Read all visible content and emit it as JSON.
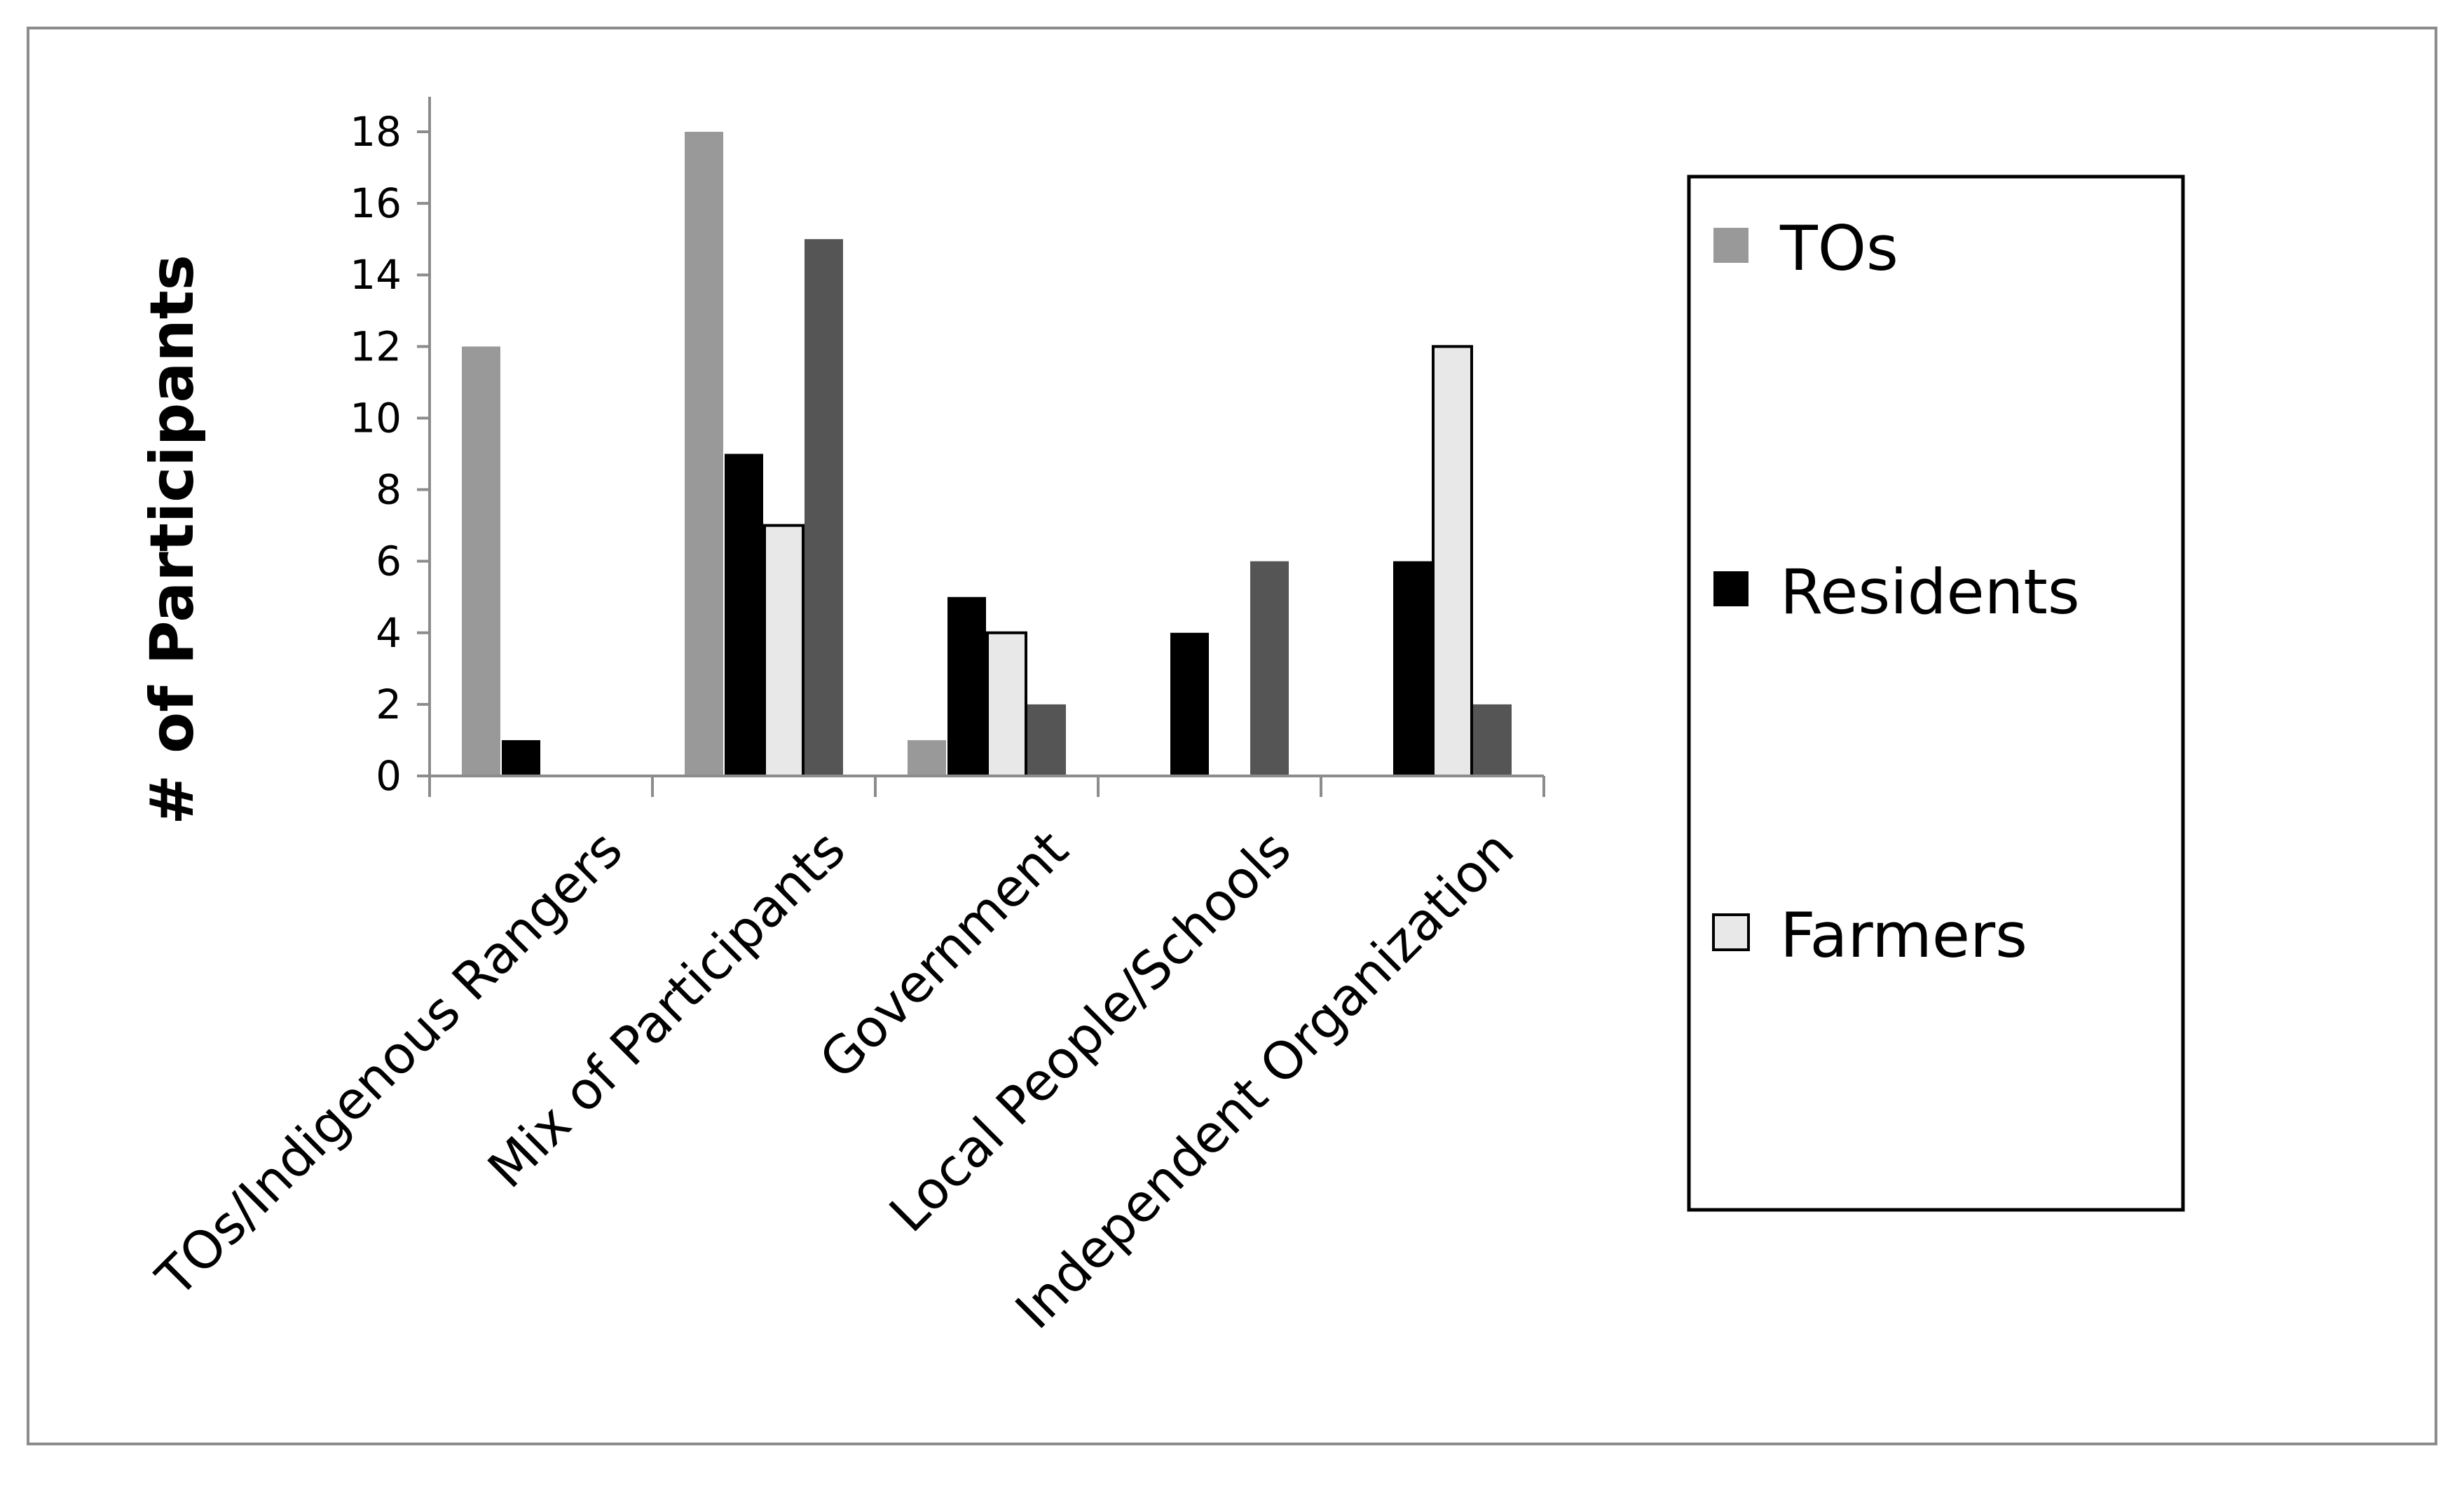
{
  "chart_data": {
    "type": "bar",
    "title": "",
    "xlabel": "",
    "ylabel": "# of Participants",
    "ylim": [
      0,
      18
    ],
    "yticks": [
      0,
      2,
      4,
      6,
      8,
      10,
      12,
      14,
      16,
      18
    ],
    "grid": false,
    "legend_position": "right",
    "categories": [
      "TOs/Indigenous Rangers",
      "Mix of Participants",
      "Government",
      "Local People/Schools",
      "Independent Organization"
    ],
    "series": [
      {
        "name": "TOs",
        "color": "#999999",
        "values": [
          12,
          18,
          1,
          0,
          0
        ]
      },
      {
        "name": "Residents",
        "color": "#000000",
        "values": [
          1,
          9,
          5,
          4,
          6
        ]
      },
      {
        "name": "Farmers",
        "color": "#e8e8e8",
        "values": [
          0,
          7,
          4,
          0,
          12
        ]
      },
      {
        "name": "",
        "color": "#555555",
        "values": [
          0,
          15,
          2,
          6,
          2
        ]
      }
    ],
    "legend_entries": [
      "TOs",
      "Residents",
      "Farmers"
    ]
  }
}
